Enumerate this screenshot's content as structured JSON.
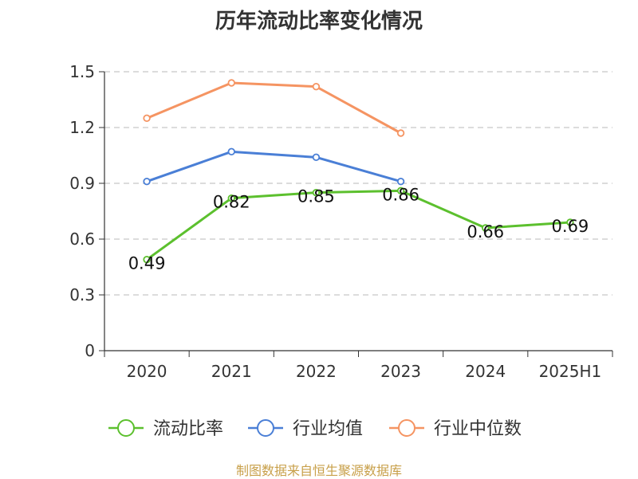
{
  "chart_data": {
    "type": "line",
    "title": "历年流动比率变化情况",
    "categories": [
      "2020",
      "2021",
      "2022",
      "2023",
      "2024",
      "2025H1"
    ],
    "ylim": [
      0,
      1.5
    ],
    "yticks": [
      "0",
      "0.3",
      "0.6",
      "0.9",
      "1.2",
      "1.5"
    ],
    "grid": true,
    "legend_position": "bottom",
    "series": [
      {
        "name": "流动比率",
        "color": "#5cc02e",
        "values": [
          0.49,
          0.82,
          0.85,
          0.86,
          0.66,
          0.69
        ],
        "labels": [
          "0.49",
          "0.82",
          "0.85",
          "0.86",
          "0.66",
          "0.69"
        ]
      },
      {
        "name": "行业均值",
        "color": "#4a7fd6",
        "values": [
          0.91,
          1.07,
          1.04,
          0.91,
          null,
          null
        ]
      },
      {
        "name": "行业中位数",
        "color": "#f59462",
        "values": [
          1.25,
          1.44,
          1.42,
          1.17,
          null,
          null
        ]
      }
    ]
  },
  "footer": "制图数据来自恒生聚源数据库"
}
